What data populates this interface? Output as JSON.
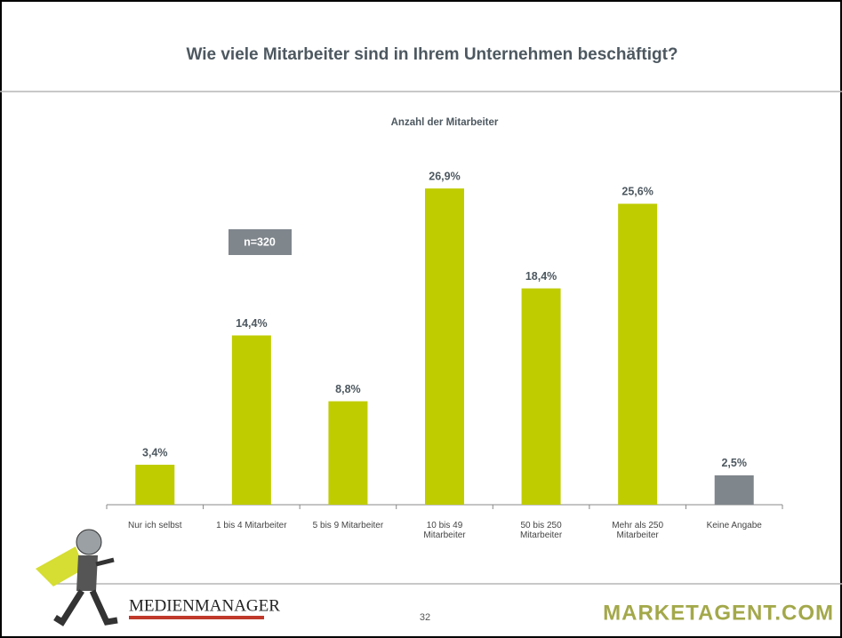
{
  "chart_data": {
    "type": "bar",
    "title": "Wie viele Mitarbeiter sind in Ihrem Unternehmen beschäftigt?",
    "subtitle": "Anzahl der Mitarbeiter",
    "annotation": "n=320",
    "categories": [
      "Nur ich selbst",
      "1 bis 4 Mitarbeiter",
      "5 bis 9 Mitarbeiter",
      "10 bis 49\nMitarbeiter",
      "50 bis 250\nMitarbeiter",
      "Mehr als 250\nMitarbeiter",
      "Keine Angabe"
    ],
    "values": [
      3.4,
      14.4,
      8.8,
      26.9,
      18.4,
      25.6,
      2.5
    ],
    "value_labels": [
      "3,4%",
      "14,4%",
      "8,8%",
      "26,9%",
      "18,4%",
      "25,6%",
      "2,5%"
    ],
    "colors": [
      "#bfcc00",
      "#bfcc00",
      "#bfcc00",
      "#bfcc00",
      "#bfcc00",
      "#bfcc00",
      "#7f868c"
    ]
  },
  "footer": {
    "left_logo": "MEDIENMANAGER",
    "page_number": "32",
    "right_logo": "MARKETAGENT.COM"
  }
}
